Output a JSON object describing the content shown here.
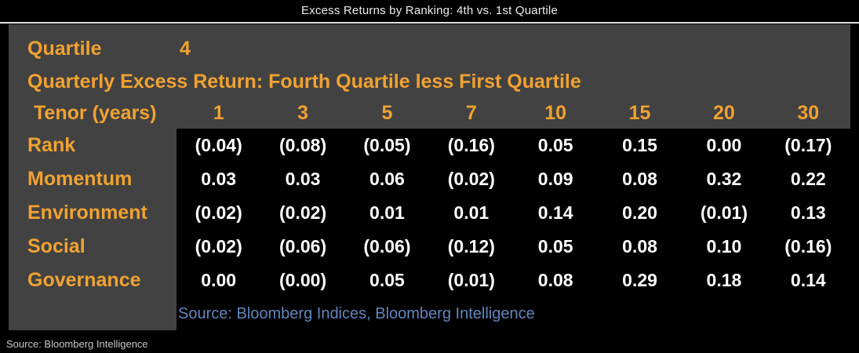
{
  "header": {
    "title": "Excess Returns by Ranking: 4th vs. 1st Quartile"
  },
  "panel": {
    "quartile_label": "Quartile",
    "quartile_value": "4",
    "subtitle": "Quarterly Excess Return: Fourth Quartile less First Quartile",
    "source_inner": "Source: Bloomberg Indices, Bloomberg Intelligence"
  },
  "footer": {
    "source": "Source: Bloomberg Intelligence"
  },
  "colors": {
    "accent_orange": "#f1a231",
    "panel_gray": "#424242",
    "data_black": "#000000",
    "value_white": "#ffffff",
    "source_blue": "#6186bd",
    "title_white": "#ececec"
  },
  "chart_data": {
    "type": "table",
    "title": "Excess Returns by Ranking: 4th vs. 1st Quartile",
    "subtitle": "Quarterly Excess Return: Fourth Quartile less First Quartile",
    "quartile": "4",
    "row_header_label": "Tenor (years)",
    "categories": [
      "1",
      "3",
      "5",
      "7",
      "10",
      "15",
      "20",
      "30"
    ],
    "series": [
      {
        "name": "Rank",
        "values": [
          "(0.04)",
          "(0.08)",
          "(0.05)",
          "(0.16)",
          "0.05",
          "0.15",
          "0.00",
          "(0.17)"
        ]
      },
      {
        "name": "Momentum",
        "values": [
          "0.03",
          "0.03",
          "0.06",
          "(0.02)",
          "0.09",
          "0.08",
          "0.32",
          "0.22"
        ]
      },
      {
        "name": "Environment",
        "values": [
          "(0.02)",
          "(0.02)",
          "0.01",
          "0.01",
          "0.14",
          "0.20",
          "(0.01)",
          "0.13"
        ]
      },
      {
        "name": "Social",
        "values": [
          "(0.02)",
          "(0.06)",
          "(0.06)",
          "(0.12)",
          "0.05",
          "0.08",
          "0.10",
          "(0.16)"
        ]
      },
      {
        "name": "Governance",
        "values": [
          "0.00",
          "(0.00)",
          "0.05",
          "(0.01)",
          "0.08",
          "0.29",
          "0.18",
          "0.14"
        ]
      }
    ],
    "negative_format": "parentheses"
  }
}
